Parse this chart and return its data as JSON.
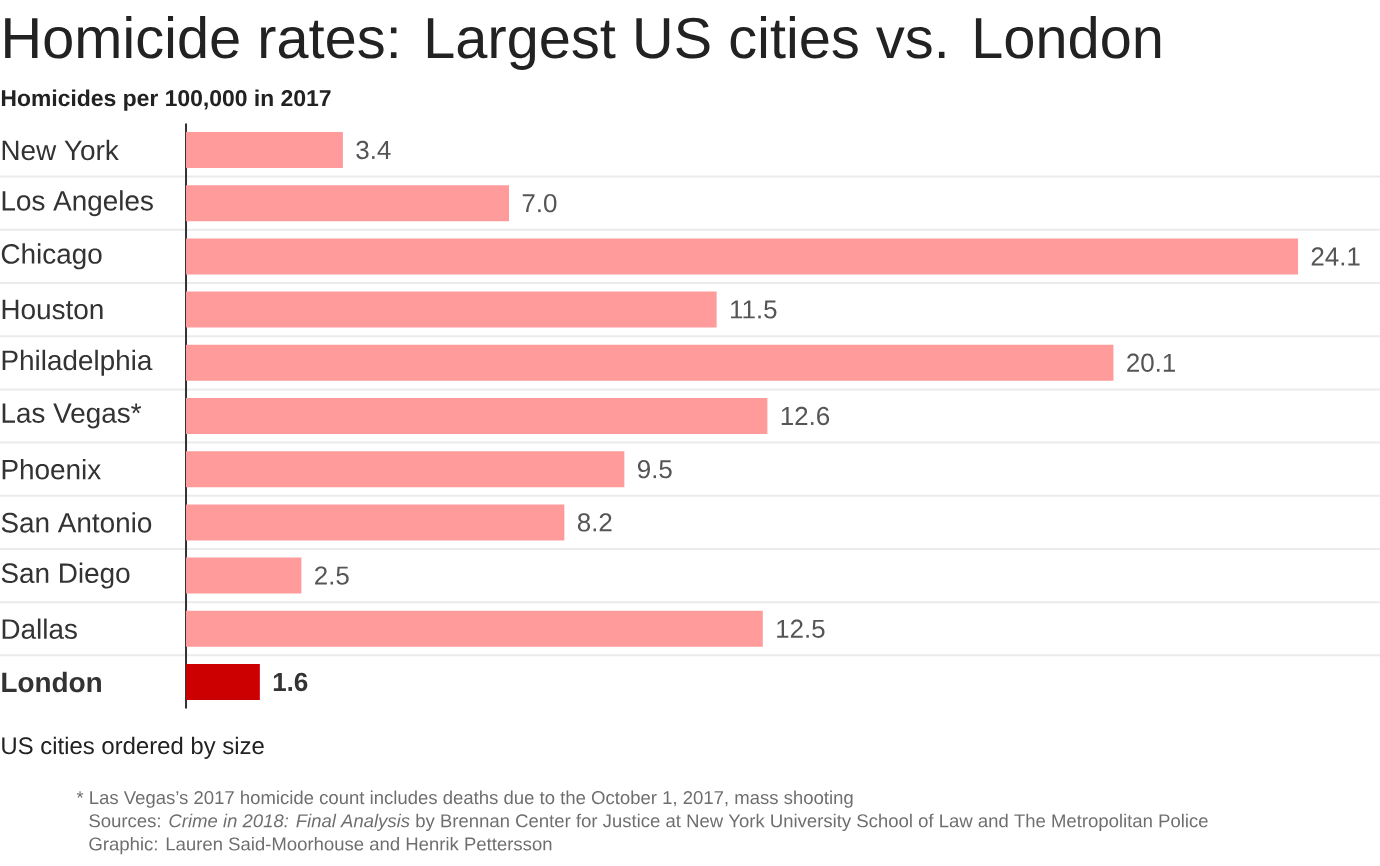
{
  "chart_data": {
    "type": "bar",
    "orientation": "horizontal",
    "title": "Homicide rates: Largest US cities vs. London",
    "subtitle": "Homicides per 100,000 in 2017",
    "categories": [
      "New York",
      "Los Angeles",
      "Chicago",
      "Houston",
      "Philadelphia",
      "Las Vegas*",
      "Phoenix",
      "San Antonio",
      "San Diego",
      "Dallas",
      "London"
    ],
    "values": [
      3.4,
      7.0,
      24.1,
      11.5,
      20.1,
      12.6,
      9.5,
      8.2,
      2.5,
      12.5,
      1.6
    ],
    "value_labels": [
      "3.4",
      "7.0",
      "24.1",
      "11.5",
      "20.1",
      "12.6",
      "9.5",
      "8.2",
      "2.5",
      "12.5",
      "1.6"
    ],
    "colors": [
      "#ff9b9b",
      "#ff9b9b",
      "#ff9b9b",
      "#ff9b9b",
      "#ff9b9b",
      "#ff9b9b",
      "#ff9b9b",
      "#ff9b9b",
      "#ff9b9b",
      "#ff9b9b",
      "#cc0000"
    ],
    "tick_labels": "y",
    "grid": "y",
    "annotations": [
      "US cities ordered by size",
      "* Las Vegas’s 2017 homicide count includes deaths due to the October 1, 2017, mass shooting",
      "Sources: *Crime in 2018: Final Analysis* by Brennan Center for Justice at New York University School of Law and The Metropolitan Police",
      "Graphic: Lauren Said-Moorhouse and Henrik Pettersson"
    ]
  }
}
